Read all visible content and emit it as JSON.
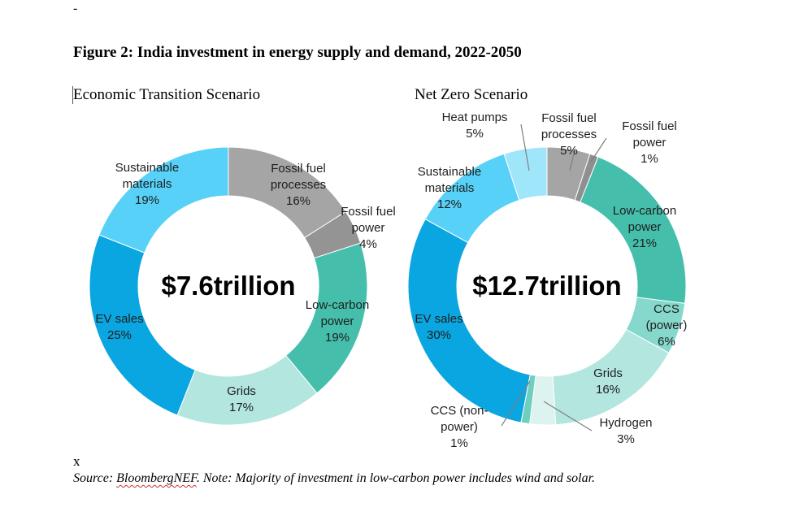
{
  "header_mark": "-",
  "figure_title": "Figure 2: India investment in energy supply and demand, 2022-2050",
  "source_prefix": "Source: ",
  "source_name": "BloombergNEF",
  "source_rest": ". Note: Majority of investment in low-carbon power includes wind and solar.",
  "stray_mark": "x",
  "chart_data": [
    {
      "type": "donut",
      "title": "Economic Transition Scenario",
      "center_label": "$7.6trillion",
      "start_angle_deg": 0,
      "direction": "clockwise",
      "segments": [
        {
          "name": "Fossil fuel processes",
          "value": 16,
          "pct_label": "16%",
          "color": "#a5a5a5",
          "label_lines": [
            "Fossil fuel",
            "processes",
            "16%"
          ]
        },
        {
          "name": "Fossil fuel power",
          "value": 4,
          "pct_label": "4%",
          "color": "#949494",
          "label_lines": [
            "Fossil fuel",
            "power",
            "4%"
          ]
        },
        {
          "name": "Low-carbon power",
          "value": 19,
          "pct_label": "19%",
          "color": "#45bfac",
          "label_lines": [
            "Low-carbon",
            "power",
            "19%"
          ]
        },
        {
          "name": "Grids",
          "value": 17,
          "pct_label": "17%",
          "color": "#b3e6df",
          "label_lines": [
            "Grids",
            "17%"
          ]
        },
        {
          "name": "EV sales",
          "value": 25,
          "pct_label": "25%",
          "color": "#0aa6e1",
          "label_lines": [
            "EV sales",
            "25%"
          ]
        },
        {
          "name": "Sustainable materials",
          "value": 19,
          "pct_label": "19%",
          "color": "#57d1f7",
          "label_lines": [
            "Sustainable",
            "materials",
            "19%"
          ]
        }
      ]
    },
    {
      "type": "donut",
      "title": "Net Zero Scenario",
      "center_label": "$12.7trillion",
      "start_angle_deg": 0,
      "direction": "clockwise",
      "segments": [
        {
          "name": "Fossil fuel processes",
          "value": 5,
          "pct_label": "5%",
          "color": "#a5a5a5",
          "label_lines": [
            "Fossil fuel",
            "processes",
            "5%"
          ]
        },
        {
          "name": "Fossil fuel power",
          "value": 1,
          "pct_label": "1%",
          "color": "#8f8f8f",
          "label_lines": [
            "Fossil fuel",
            "power",
            "1%"
          ]
        },
        {
          "name": "Low-carbon power",
          "value": 21,
          "pct_label": "21%",
          "color": "#45bfac",
          "label_lines": [
            "Low-carbon",
            "power",
            "21%"
          ]
        },
        {
          "name": "CCS (power)",
          "value": 6,
          "pct_label": "6%",
          "color": "#86d7cc",
          "label_lines": [
            "CCS",
            "(power)",
            "6%"
          ]
        },
        {
          "name": "Grids",
          "value": 16,
          "pct_label": "16%",
          "color": "#b3e6df",
          "label_lines": [
            "Grids",
            "16%"
          ]
        },
        {
          "name": "Hydrogen",
          "value": 3,
          "pct_label": "3%",
          "color": "#ddf3ef",
          "label_lines": [
            "Hydrogen",
            "3%"
          ]
        },
        {
          "name": "CCS (non-power)",
          "value": 1,
          "pct_label": "1%",
          "color": "#6fcfbf",
          "label_lines": [
            "CCS (non-",
            "power)",
            "1%"
          ]
        },
        {
          "name": "EV sales",
          "value": 30,
          "pct_label": "30%",
          "color": "#0aa6e1",
          "label_lines": [
            "EV sales",
            "30%"
          ]
        },
        {
          "name": "Sustainable materials",
          "value": 12,
          "pct_label": "12%",
          "color": "#57d1f7",
          "label_lines": [
            "Sustainable",
            "materials",
            "12%"
          ]
        },
        {
          "name": "Heat pumps",
          "value": 5,
          "pct_label": "5%",
          "color": "#9fe6fb",
          "label_lines": [
            "Heat pumps",
            "5%"
          ]
        }
      ]
    }
  ]
}
